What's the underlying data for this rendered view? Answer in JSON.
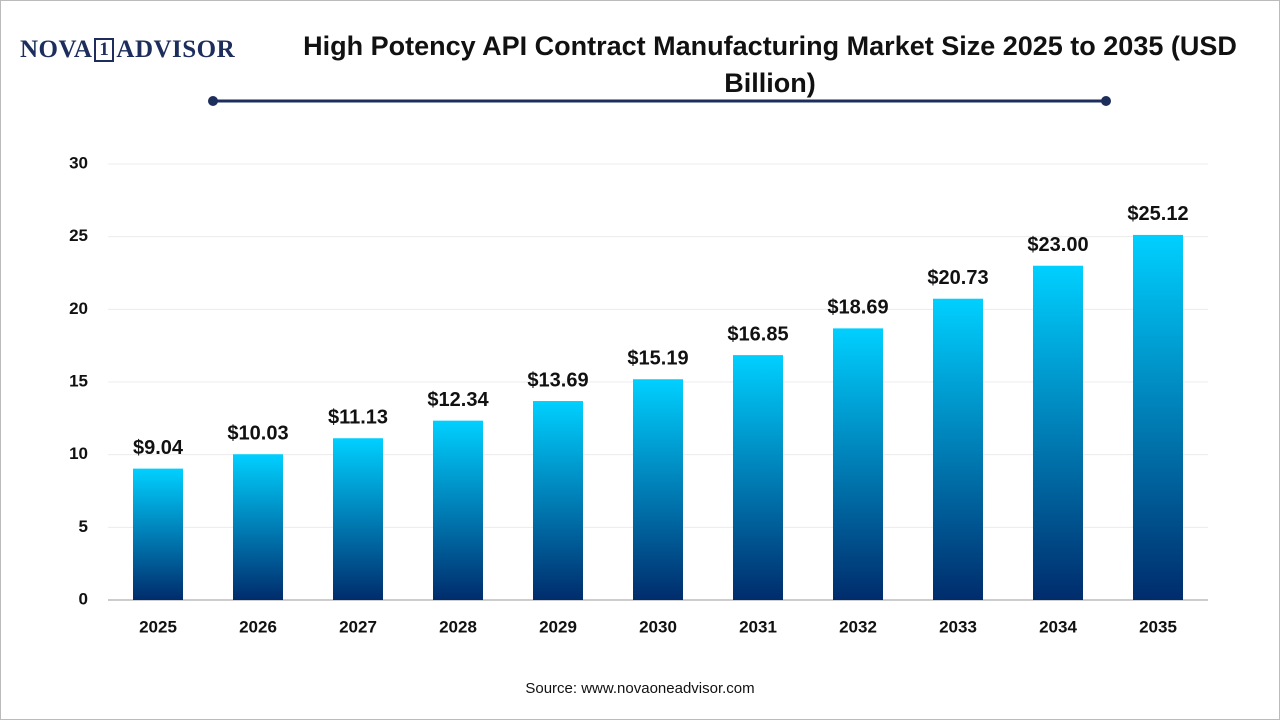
{
  "logo": [
    "NOVA",
    "1",
    "ADVISOR"
  ],
  "chart_data": {
    "type": "bar",
    "title": "High Potency API Contract Manufacturing Market Size 2025 to 2035 (USD Billion)",
    "categories": [
      "2025",
      "2026",
      "2027",
      "2028",
      "2029",
      "2030",
      "2031",
      "2032",
      "2033",
      "2034",
      "2035"
    ],
    "values": [
      9.04,
      10.03,
      11.13,
      12.34,
      13.69,
      15.19,
      16.85,
      18.69,
      20.73,
      23,
      25.12
    ],
    "value_labels": [
      "$9.04",
      "$10.03",
      "$11.13",
      "$12.34",
      "$13.69",
      "$15.19",
      "$16.85",
      "$18.69",
      "$20.73",
      "$23.00",
      "$25.12"
    ],
    "gradient": [
      "#00d0ff",
      "#002c6c"
    ],
    "ylim": [
      0,
      30
    ],
    "yticks": [
      0,
      5,
      10,
      15,
      20,
      25,
      30
    ],
    "grid": true,
    "source": "Source: www.novaoneadvisor.com"
  }
}
